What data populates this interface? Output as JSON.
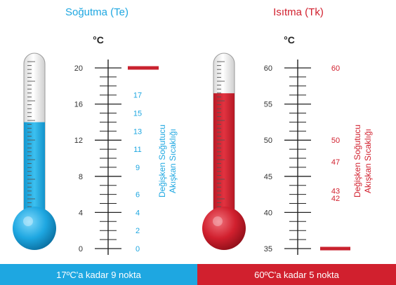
{
  "colors": {
    "cool": "#1ea7e1",
    "heat": "#d1202e",
    "axis": "#222222",
    "text": "#333333"
  },
  "cooling": {
    "title": "Soğutma (Te)",
    "unit": "°C",
    "side_label_line1": "Değişken Soğutucu",
    "side_label_line2": "Akışkan Sıcaklığı",
    "axis_ticks": [
      0,
      4,
      8,
      12,
      16,
      20
    ],
    "axis_range": [
      0,
      20
    ],
    "points": [
      0,
      2,
      4,
      6,
      9,
      11,
      13,
      15,
      17
    ],
    "fill_level": 12.5,
    "marker_value": 20
  },
  "heating": {
    "title": "Isıtma (Tk)",
    "unit": "°C",
    "side_label_line1": "Değişken Soğutucu",
    "side_label_line2": "Akışkan Sıcaklığı",
    "axis_ticks": [
      35,
      40,
      45,
      50,
      55,
      60
    ],
    "axis_range": [
      35,
      60
    ],
    "points": [
      42,
      43,
      47,
      50,
      60
    ],
    "fill_level": 55,
    "marker_value": 35
  },
  "footer": {
    "cooling": "17ºC'a kadar 9 nokta",
    "heating": "60ºC'a kadar 5 nokta"
  }
}
